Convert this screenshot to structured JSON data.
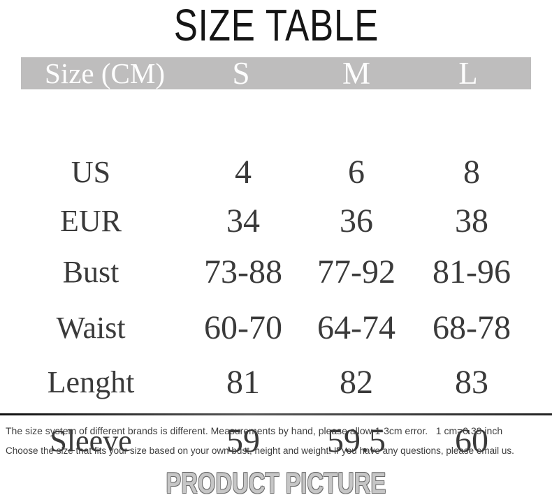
{
  "page": {
    "title": "SIZE TABLE",
    "footer": "PRODUCT PICTURE"
  },
  "table": {
    "header": {
      "label": "Size (CM)",
      "columns": [
        "S",
        "M",
        "L"
      ]
    },
    "rows": [
      {
        "label": "US",
        "values": [
          "4",
          "6",
          "8"
        ]
      },
      {
        "label": "EUR",
        "values": [
          "34",
          "36",
          "38"
        ]
      },
      {
        "label": "Bust",
        "values": [
          "73-88",
          "77-92",
          "81-96"
        ]
      },
      {
        "label": "Waist",
        "values": [
          "60-70",
          "64-74",
          "68-78"
        ]
      },
      {
        "label": "Lenght",
        "values": [
          "81",
          "82",
          "83"
        ]
      },
      {
        "label": "Sleeve",
        "values": [
          "59",
          "59.5",
          "60"
        ]
      }
    ]
  },
  "notes": [
    "The size system of different brands is different. Measurements by hand, please allow 1-3cm error.   1 cm=0.39 inch",
    "Choose the size that fits your size based on your own bust, height and weight. If you have any questions, please email us."
  ],
  "colors": {
    "header_bg": "#bebdbd",
    "header_text": "#fdfdfd",
    "table_text": "#3a3a3a",
    "title_text": "#151515",
    "footer_text": "#c6c6c6"
  }
}
